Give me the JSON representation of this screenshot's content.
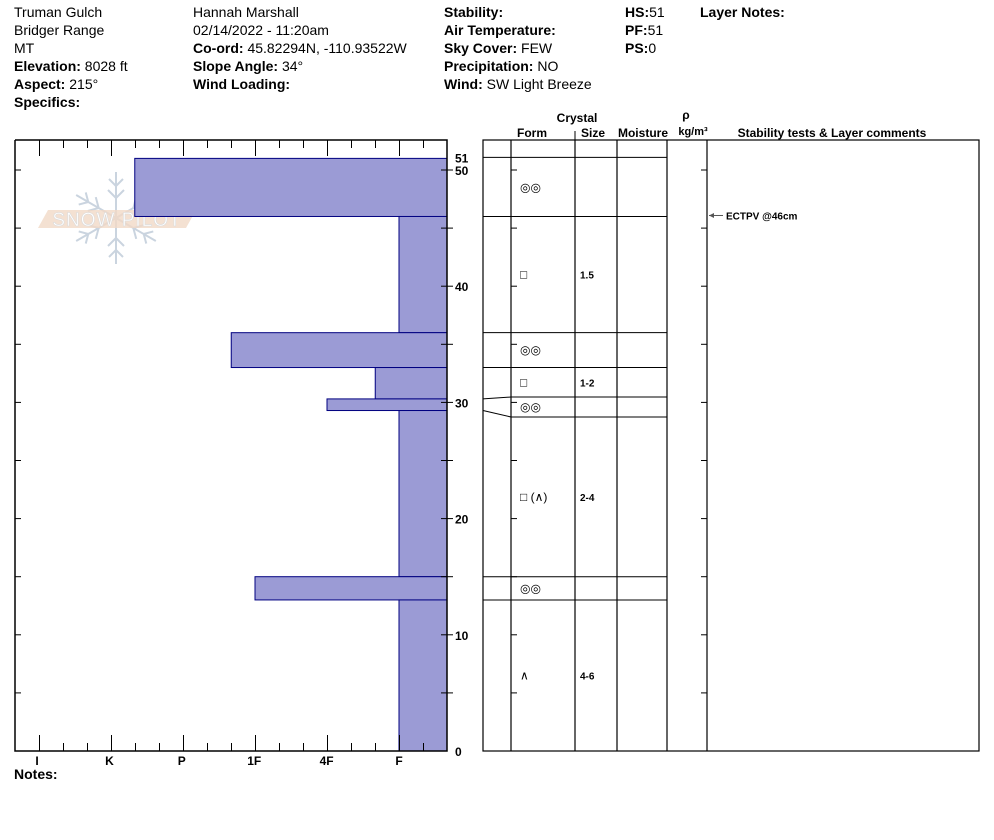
{
  "header": {
    "col1": [
      {
        "label": "",
        "value": "Truman Gulch"
      },
      {
        "label": "",
        "value": "Bridger Range"
      },
      {
        "label": "",
        "value": "MT"
      },
      {
        "label": "Elevation:",
        "value": "8028 ft"
      },
      {
        "label": "Aspect:",
        "value": "215°"
      },
      {
        "label": "Specifics:",
        "value": ""
      }
    ],
    "col2": [
      {
        "label": "",
        "value": "Hannah Marshall"
      },
      {
        "label": "",
        "value": "02/14/2022 - 11:20am"
      },
      {
        "label": "Co-ord:",
        "value": "45.82294N, -110.93522W"
      },
      {
        "label": "Slope Angle:",
        "value": "34°"
      },
      {
        "label": "Wind Loading:",
        "value": ""
      }
    ],
    "col3": [
      {
        "label": "Stability:",
        "value": ""
      },
      {
        "label": "Air Temperature:",
        "value": ""
      },
      {
        "label": "Sky Cover:",
        "value": "FEW"
      },
      {
        "label": "Precipitation:",
        "value": "NO"
      },
      {
        "label": "Wind:",
        "value": " SW Light Breeze"
      }
    ],
    "col4": [
      {
        "label": "HS:",
        "value": "51"
      },
      {
        "label": "PF:",
        "value": "51"
      },
      {
        "label": "PS:",
        "value": "0"
      }
    ],
    "col5": [
      {
        "label": "Layer Notes:",
        "value": ""
      }
    ]
  },
  "notes_label": "Notes:",
  "watermark": "SNOW PILOT",
  "table_headers": {
    "crystal": "Crystal",
    "form": "Form",
    "size": "Size",
    "moisture": "Moisture",
    "rho": "ρ",
    "density_unit": "kg/m³",
    "comments": "Stability tests & Layer comments"
  },
  "colors": {
    "bar_fill": "#9b9bd5",
    "bar_stroke": "#000080",
    "watermark_snowflake": "#c5d0dc",
    "watermark_band": "#f0d5c0"
  },
  "chart_data": {
    "type": "bar",
    "orientation": "horizontal",
    "ylabel": "",
    "ylim": [
      0,
      51
    ],
    "y_ticks": [
      0,
      10,
      20,
      30,
      40,
      50,
      51
    ],
    "hardness_ticks": [
      "I",
      "K",
      "P",
      "1F",
      "4F",
      "F"
    ],
    "hardness_index": {
      "F": 1,
      "4F": 2,
      "1F": 3,
      "P": 4,
      "K": 5,
      "I": 6
    },
    "layers": [
      {
        "top": 51,
        "bottom": 46,
        "hardness": "K-",
        "hardness_value": 4.67,
        "form": "◎◎",
        "size": ""
      },
      {
        "top": 46,
        "bottom": 36,
        "hardness": "F",
        "hardness_value": 1,
        "form": "□",
        "size": "1.5"
      },
      {
        "top": 36,
        "bottom": 33,
        "hardness": "1F+",
        "hardness_value": 3.33,
        "form": "◎◎",
        "size": ""
      },
      {
        "top": 33,
        "bottom": 30.3,
        "hardness": "F+",
        "hardness_value": 1.33,
        "form": "□",
        "size": "1-2"
      },
      {
        "top": 30.3,
        "bottom": 29.3,
        "hardness": "4F",
        "hardness_value": 2,
        "form": "◎◎",
        "size": ""
      },
      {
        "top": 29.3,
        "bottom": 15,
        "hardness": "F",
        "hardness_value": 1,
        "form": "□ (∧)",
        "size": "2-4"
      },
      {
        "top": 15,
        "bottom": 13,
        "hardness": "1F",
        "hardness_value": 3,
        "form": "◎◎",
        "size": ""
      },
      {
        "top": 13,
        "bottom": 0,
        "hardness": "F",
        "hardness_value": 1,
        "form": "∧",
        "size": "4-6"
      }
    ],
    "stability_tests": [
      {
        "depth": 46,
        "label": "ECTPV @46cm"
      }
    ]
  }
}
